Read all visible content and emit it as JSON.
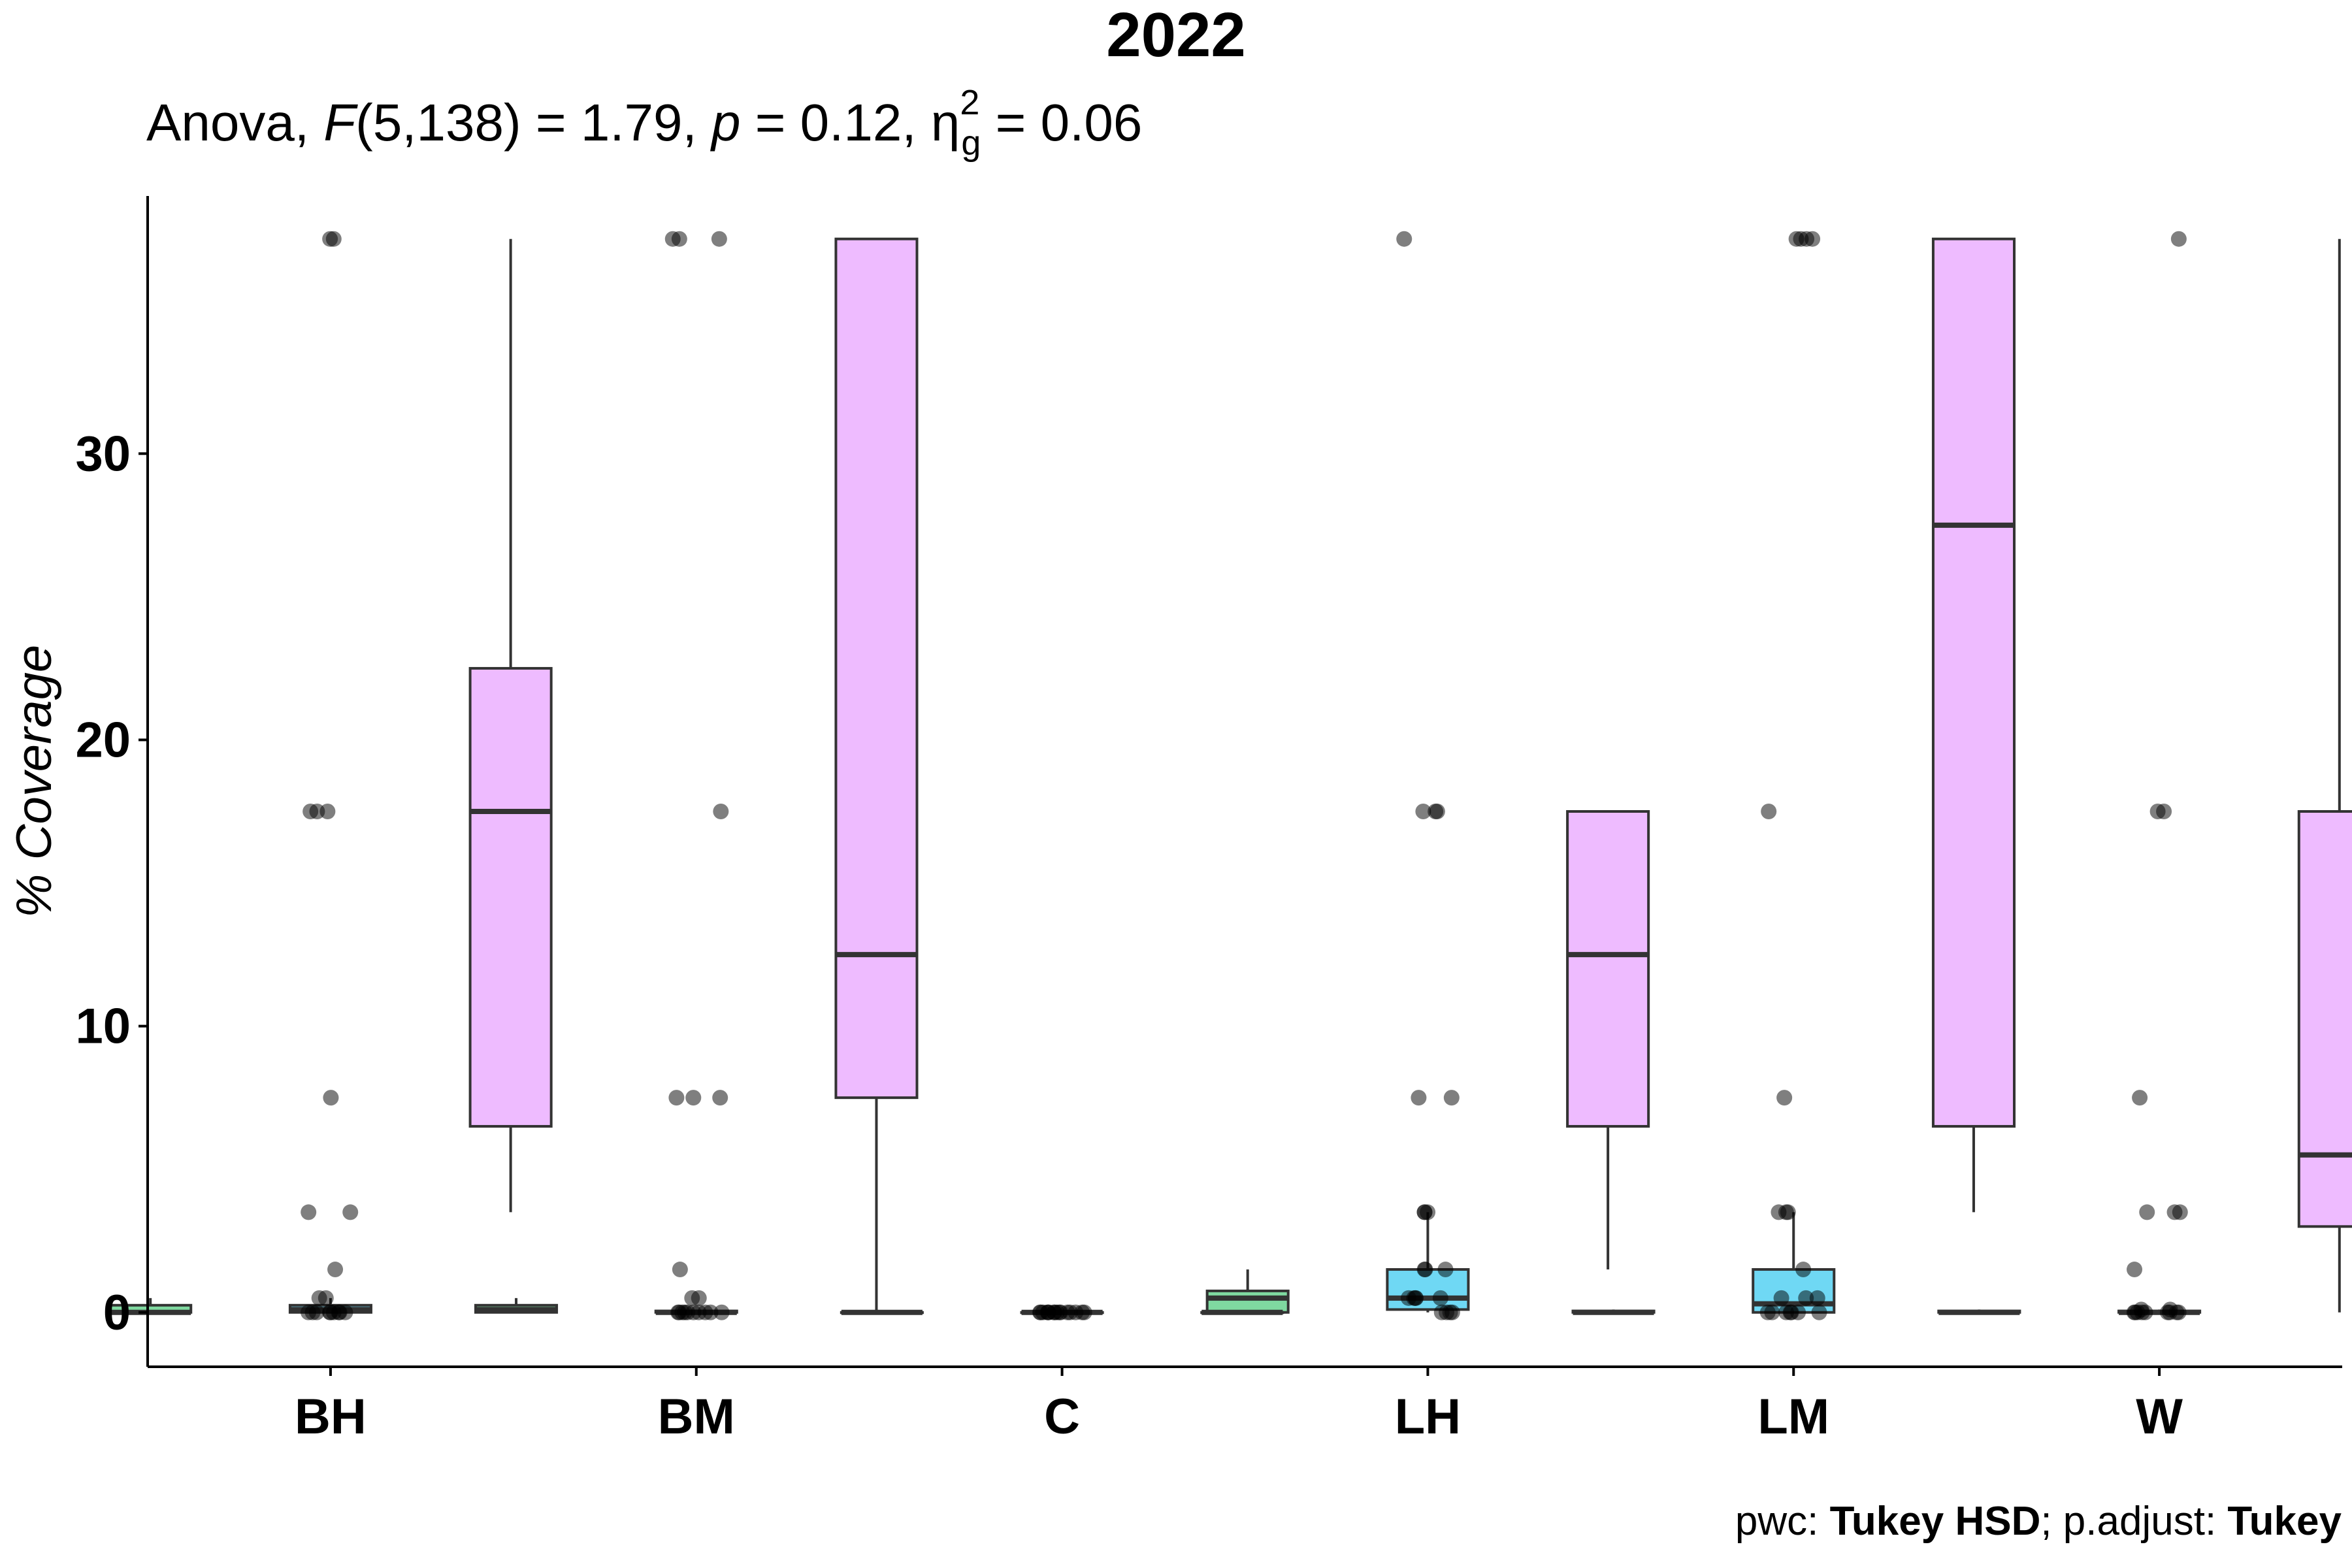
{
  "chart_data": {
    "type": "box",
    "title": "2022",
    "subtitle": {
      "prefix": "Anova,",
      "stat": "F",
      "df": "(5,138)",
      "equals_f": "= 1.79,",
      "p_label": "p",
      "equals_p": "= 0.12,",
      "eta": "η",
      "eta_sup": "2",
      "eta_sub": "g",
      "equals_eta": "= 0.06"
    },
    "caption": {
      "pwc_label": "pwc:",
      "pwc_value": "Tukey HSD",
      "sep": "; p.adjust:",
      "adjust_value": "Tukey"
    },
    "ylabel": "% Coverage",
    "xlabel": "",
    "ylim": [
      -1.9,
      39.0
    ],
    "yticks": [
      "0",
      "10",
      "20",
      "30"
    ],
    "grid": false,
    "categories": [
      "BH",
      "BM",
      "C",
      "LH",
      "LM",
      "W"
    ],
    "series_colors": [
      "#7fd9a0",
      "#6fd8f4",
      "#eebbff"
    ],
    "series": [
      {
        "boxes": [
          {
            "q1": 0,
            "median": 0,
            "q3": 0.25,
            "whisker_low": 0,
            "whisker_high": 0.5
          },
          {
            "q1": 0,
            "median": 0.1,
            "q3": 0.25,
            "whisker_low": 0,
            "whisker_high": 0.5
          },
          {
            "q1": 0,
            "median": 0,
            "q3": 0,
            "whisker_low": 0,
            "whisker_high": 0
          },
          {
            "q1": 0,
            "median": 0.5,
            "q3": 0.75,
            "whisker_low": 0,
            "whisker_high": 1.5
          },
          {
            "q1": 0,
            "median": 0,
            "q3": 0.05,
            "whisker_low": 0,
            "whisker_high": 0.1
          },
          {
            "q1": 0,
            "median": 0,
            "q3": 0.05,
            "whisker_low": 0,
            "whisker_high": 0.1
          }
        ]
      },
      {
        "boxes": [
          {
            "q1": 0,
            "median": 0.1,
            "q3": 0.25,
            "whisker_low": 0,
            "whisker_high": 0.5
          },
          {
            "q1": 0,
            "median": 0,
            "q3": 0.05,
            "whisker_low": 0,
            "whisker_high": 0.1
          },
          {
            "q1": 0,
            "median": 0,
            "q3": 0,
            "whisker_low": 0,
            "whisker_high": 0
          },
          {
            "q1": 0.1,
            "median": 0.5,
            "q3": 1.5,
            "whisker_low": 0,
            "whisker_high": 3.5
          },
          {
            "q1": 0,
            "median": 0.3,
            "q3": 1.5,
            "whisker_low": 0,
            "whisker_high": 3.5
          },
          {
            "q1": 0,
            "median": 0,
            "q3": 0.05,
            "whisker_low": 0,
            "whisker_high": 0.1
          }
        ]
      },
      {
        "boxes": [
          {
            "q1": 6.5,
            "median": 17.5,
            "q3": 22.5,
            "whisker_low": 3.5,
            "whisker_high": 37.5
          },
          {
            "q1": 7.5,
            "median": 12.5,
            "q3": 37.5,
            "whisker_low": 0,
            "whisker_high": 37.5
          },
          {
            "q1": 0,
            "median": 0,
            "q3": 0,
            "whisker_low": 0,
            "whisker_high": 0
          },
          {
            "q1": 6.5,
            "median": 12.5,
            "q3": 17.5,
            "whisker_low": 1.5,
            "whisker_high": 17.5
          },
          {
            "q1": 6.5,
            "median": 27.5,
            "q3": 37.5,
            "whisker_low": 3.5,
            "whisker_high": 37.5
          },
          {
            "q1": 3.0,
            "median": 5.5,
            "q3": 17.5,
            "whisker_low": 0,
            "whisker_high": 37.5
          }
        ]
      }
    ],
    "points": [
      {
        "category": "BH",
        "values": [
          37.5,
          37.5,
          17.5,
          17.5,
          17.5,
          7.5,
          3.5,
          3.5,
          1.5,
          0.5,
          0.5,
          0,
          0,
          0,
          0,
          0,
          0,
          0,
          0,
          0
        ]
      },
      {
        "category": "BM",
        "values": [
          37.5,
          37.5,
          37.5,
          17.5,
          7.5,
          7.5,
          7.5,
          1.5,
          0.5,
          0.5,
          0,
          0,
          0,
          0,
          0,
          0,
          0,
          0,
          0,
          0
        ]
      },
      {
        "category": "C",
        "values": [
          0,
          0,
          0,
          0,
          0,
          0,
          0,
          0,
          0,
          0,
          0,
          0,
          0,
          0,
          0,
          0
        ]
      },
      {
        "category": "LH",
        "values": [
          37.5,
          17.5,
          17.5,
          17.5,
          7.5,
          7.5,
          3.5,
          3.5,
          3.5,
          1.5,
          1.5,
          1.5,
          0.5,
          0.5,
          0.5,
          0.5,
          0.5,
          0,
          0,
          0,
          0
        ]
      },
      {
        "category": "LM",
        "values": [
          37.5,
          37.5,
          37.5,
          37.5,
          17.5,
          7.5,
          3.5,
          3.5,
          3.5,
          1.5,
          0.5,
          0.5,
          0.5,
          0,
          0,
          0,
          0,
          0,
          0,
          0
        ]
      },
      {
        "category": "W",
        "values": [
          37.5,
          17.5,
          17.5,
          7.5,
          3.5,
          3.5,
          3.5,
          1.5,
          0.1,
          0.1,
          0,
          0,
          0,
          0,
          0,
          0,
          0,
          0,
          0
        ]
      }
    ]
  }
}
